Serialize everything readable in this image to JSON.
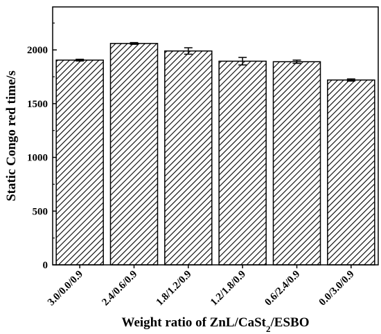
{
  "chart_data": {
    "type": "bar",
    "categories": [
      "3.0/0.0/0.9",
      "2.4/0.6/0.9",
      "1.8/1.2/0.9",
      "1.2/1.8/0.9",
      "0.6/2.4/0.9",
      "0.0/3.0/0.9"
    ],
    "values": [
      1905,
      2060,
      1990,
      1895,
      1890,
      1720
    ],
    "errors": [
      8,
      8,
      30,
      35,
      15,
      10
    ],
    "xlabel": "Weight ratio of ZnL/CaSt",
    "xlabel_subscript": "2",
    "xlabel_suffix": "/ESBO",
    "ylabel": "Static Congo red time/s",
    "ylim": [
      0,
      2400
    ],
    "yticks": [
      0,
      500,
      1000,
      1500,
      2000
    ],
    "bar_fill": "hatched",
    "colors": {
      "bar_stroke": "#000000",
      "hatch": "#000000"
    },
    "grid": false,
    "legend": "none"
  }
}
